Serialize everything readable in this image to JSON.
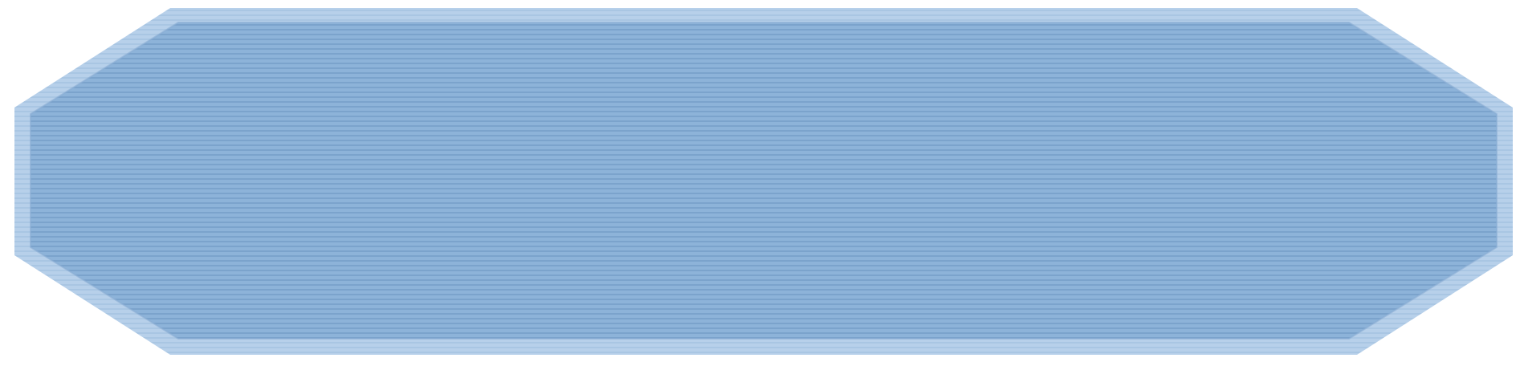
{
  "banner": {
    "shape": "elongated-hexagon",
    "fill_color": "#8DB3D9",
    "stripe_color": "#7BA3CC",
    "stripe_light_color": "#A9C6E3",
    "edge_color": "#B7D0EA",
    "inner_border_color": "#8AAED4",
    "pattern": "horizontal-stripes",
    "text": ""
  }
}
